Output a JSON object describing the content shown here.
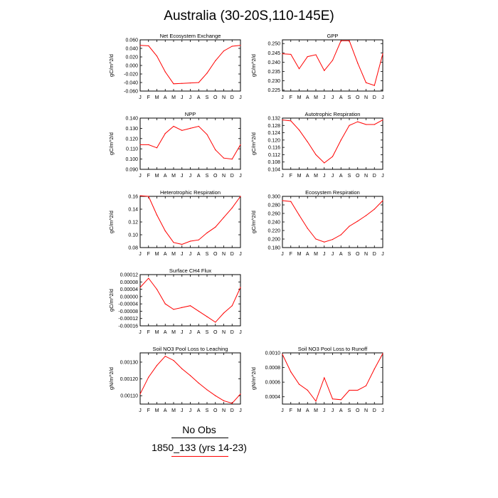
{
  "title": "Australia (30-20S,110-145E)",
  "legend": {
    "obs_label": "No Obs",
    "model_label": "1850_133 (yrs 14-23)",
    "model_color": "#ff0000"
  },
  "months": [
    "J",
    "F",
    "M",
    "A",
    "M",
    "J",
    "J",
    "A",
    "S",
    "O",
    "N",
    "D",
    "J"
  ],
  "chart_data": [
    {
      "type": "line",
      "title": "Net Ecosystem Exchange",
      "ylabel": "gC/m^2/d",
      "ylim": [
        -0.06,
        0.06
      ],
      "yticks": [
        "0.060",
        "0.040",
        "0.020",
        "0.000",
        "-0.020",
        "-0.040",
        "-0.060"
      ],
      "ytick_values": [
        0.06,
        0.04,
        0.02,
        0.0,
        -0.02,
        -0.04,
        -0.06
      ],
      "series": [
        {
          "values": [
            0.047,
            0.046,
            0.022,
            -0.015,
            -0.043,
            -0.042,
            -0.041,
            -0.04,
            -0.018,
            0.011,
            0.034,
            0.045,
            0.047
          ],
          "color": "#ff0000"
        }
      ]
    },
    {
      "type": "line",
      "title": "GPP",
      "ylabel": "gC/m^2/d",
      "ylim": [
        0.2245,
        0.252
      ],
      "yticks": [
        "0.250",
        "0.245",
        "0.240",
        "0.235",
        "0.230",
        "0.225"
      ],
      "ytick_values": [
        0.25,
        0.245,
        0.24,
        0.235,
        0.23,
        0.225
      ],
      "series": [
        {
          "values": [
            0.2445,
            0.2442,
            0.2365,
            0.243,
            0.244,
            0.2355,
            0.241,
            0.2515,
            0.2515,
            0.2395,
            0.229,
            0.2275,
            0.2445
          ],
          "color": "#ff0000"
        }
      ]
    },
    {
      "type": "line",
      "title": "NPP",
      "ylabel": "gC/m^2/d",
      "ylim": [
        0.09,
        0.14
      ],
      "yticks": [
        "0.140",
        "0.130",
        "0.120",
        "0.110",
        "0.100",
        "0.090"
      ],
      "ytick_values": [
        0.14,
        0.13,
        0.12,
        0.11,
        0.1,
        0.09
      ],
      "series": [
        {
          "values": [
            0.114,
            0.114,
            0.111,
            0.125,
            0.132,
            0.128,
            0.13,
            0.132,
            0.124,
            0.109,
            0.101,
            0.1,
            0.114
          ],
          "color": "#ff0000"
        }
      ]
    },
    {
      "type": "line",
      "title": "Autotrophic Respiration",
      "ylabel": "gC/m^2/d",
      "ylim": [
        0.104,
        0.132
      ],
      "yticks": [
        "0.132",
        "0.128",
        "0.124",
        "0.120",
        "0.116",
        "0.112",
        "0.108",
        "0.104"
      ],
      "ytick_values": [
        0.132,
        0.128,
        0.124,
        0.12,
        0.116,
        0.112,
        0.108,
        0.104
      ],
      "series": [
        {
          "values": [
            0.131,
            0.1305,
            0.1255,
            0.119,
            0.112,
            0.1075,
            0.111,
            0.12,
            0.128,
            0.13,
            0.1285,
            0.1285,
            0.131
          ],
          "color": "#ff0000"
        }
      ]
    },
    {
      "type": "line",
      "title": "Heterotrophic Respiration",
      "ylabel": "gC/m^2/d",
      "ylim": [
        0.08,
        0.16
      ],
      "yticks": [
        "0.16",
        "0.14",
        "0.12",
        "0.10",
        "0.08"
      ],
      "ytick_values": [
        0.16,
        0.14,
        0.12,
        0.1,
        0.08
      ],
      "series": [
        {
          "values": [
            0.161,
            0.16,
            0.131,
            0.106,
            0.088,
            0.085,
            0.09,
            0.092,
            0.103,
            0.112,
            0.127,
            0.142,
            0.16
          ],
          "color": "#ff0000"
        }
      ]
    },
    {
      "type": "line",
      "title": "Ecosystem Respiration",
      "ylabel": "gC/m^2/d",
      "ylim": [
        0.18,
        0.3
      ],
      "yticks": [
        "0.300",
        "0.280",
        "0.260",
        "0.240",
        "0.220",
        "0.200",
        "0.180"
      ],
      "ytick_values": [
        0.3,
        0.28,
        0.26,
        0.24,
        0.22,
        0.2,
        0.18
      ],
      "series": [
        {
          "values": [
            0.29,
            0.288,
            0.256,
            0.225,
            0.2,
            0.193,
            0.199,
            0.21,
            0.23,
            0.242,
            0.255,
            0.27,
            0.29
          ],
          "color": "#ff0000"
        }
      ]
    },
    {
      "type": "line",
      "title": "Surface CH4 Flux",
      "ylabel": "gC/m^2/d",
      "ylim": [
        -0.00016,
        0.00012
      ],
      "yticks": [
        "0.00012",
        "0.00008",
        "0.00004",
        "0.00000",
        "-0.00004",
        "-0.00008",
        "-0.00012",
        "-0.00016"
      ],
      "ytick_values": [
        0.00012,
        8e-05,
        4e-05,
        0.0,
        -4e-05,
        -8e-05,
        -0.00012,
        -0.00016
      ],
      "series": [
        {
          "values": [
            5e-05,
            0.0001,
            4e-05,
            -4e-05,
            -7e-05,
            -6e-05,
            -5e-05,
            -8e-05,
            -0.00011,
            -0.00014,
            -9e-05,
            -5e-05,
            5e-05
          ],
          "color": "#ff0000"
        }
      ]
    },
    {
      "type": "line",
      "title": "Soil NO3 Pool Loss to Leaching",
      "ylabel": "gN/m^2/d",
      "ylim": [
        0.00105,
        0.001355
      ],
      "yticks": [
        "0.00130",
        "0.00120",
        "0.00110"
      ],
      "ytick_values": [
        0.0013,
        0.0012,
        0.0011
      ],
      "series": [
        {
          "values": [
            0.00111,
            0.00121,
            0.00128,
            0.001335,
            0.00131,
            0.00126,
            0.00122,
            0.001175,
            0.001135,
            0.0011,
            0.00107,
            0.001055,
            0.00111
          ],
          "color": "#ff0000"
        }
      ]
    },
    {
      "type": "line",
      "title": "Soil NO3 Pool Loss to Runoff",
      "ylabel": "gN/m^2/d",
      "ylim": [
        0.0003,
        0.001
      ],
      "yticks": [
        "0.0010",
        "0.0008",
        "0.0006",
        "0.0004"
      ],
      "ytick_values": [
        0.001,
        0.0008,
        0.0006,
        0.0004
      ],
      "series": [
        {
          "values": [
            0.00098,
            0.00074,
            0.00057,
            0.00049,
            0.00034,
            0.00066,
            0.00037,
            0.00036,
            0.00049,
            0.00049,
            0.00055,
            0.00078,
            0.00099
          ],
          "color": "#ff0000"
        }
      ]
    }
  ]
}
